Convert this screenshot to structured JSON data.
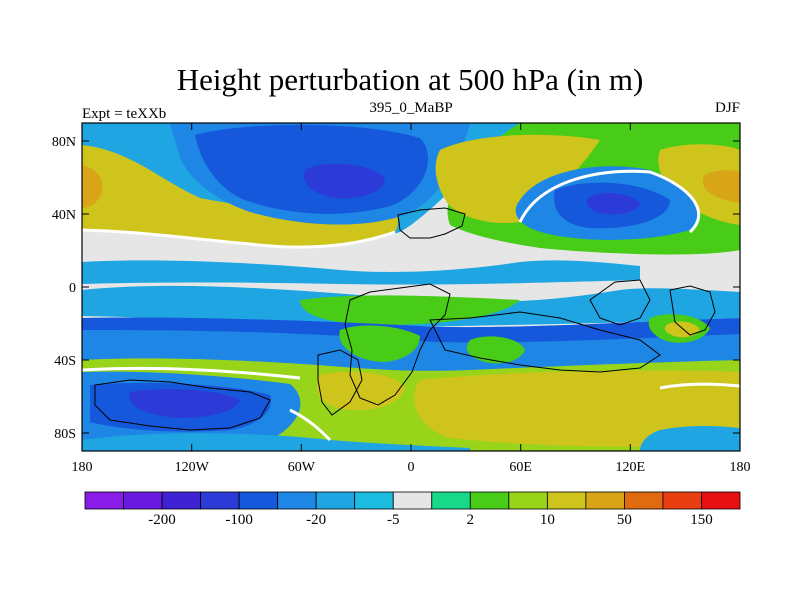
{
  "title": "Height perturbation at 500 hPa (in m)",
  "left_label": "Expt = teXXb",
  "center_label": "395_0_MaBP",
  "right_label": "DJF",
  "lat_labels": [
    "80N",
    "40N",
    "0",
    "40S",
    "80S"
  ],
  "lon_labels": [
    "180",
    "120W",
    "60W",
    "0",
    "60E",
    "120E",
    "180"
  ],
  "colorbar": {
    "colors": [
      "#8a1ce8",
      "#6a1ae0",
      "#3e22d4",
      "#2c3ad8",
      "#1558dc",
      "#1e86e4",
      "#1fa6e2",
      "#1bbce0",
      "#e6e6e6",
      "#18d88a",
      "#48cc18",
      "#98d41a",
      "#cfc41c",
      "#d8a418",
      "#e06a10",
      "#e83e12",
      "#e81010"
    ],
    "labels": [
      "-200",
      "-100",
      "-20",
      "-5",
      "2",
      "10",
      "50",
      "150"
    ]
  },
  "colors": {
    "neutral": "#e6e6e6",
    "cyan": "#1fa6e2",
    "mid_blue": "#1e86e4",
    "blue": "#1558dc",
    "deep_blue": "#2c3ad8",
    "teal_green": "#18d88a",
    "green": "#48cc18",
    "yellow_green": "#98d41a",
    "olive": "#cfc41c",
    "orange": "#d8a418",
    "zero_contour": "#ffffff",
    "coast": "#000000"
  }
}
